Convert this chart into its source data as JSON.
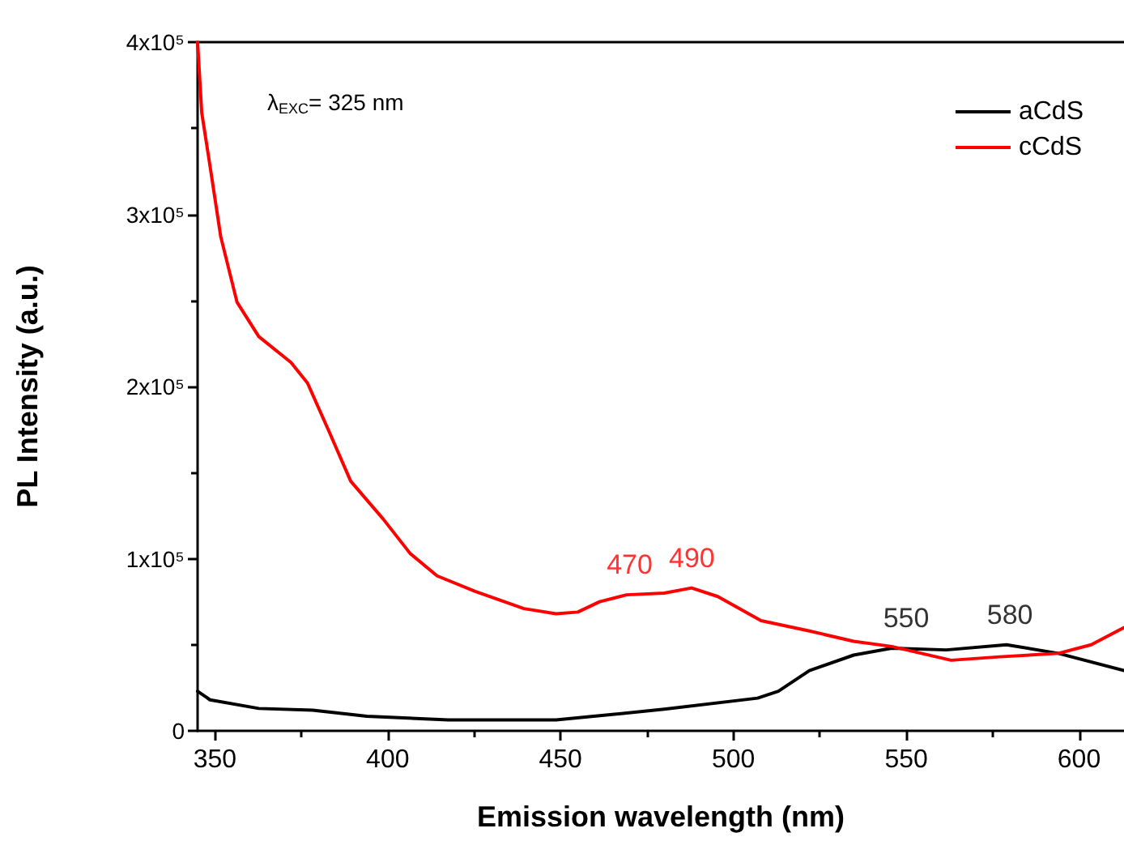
{
  "chart_data": {
    "type": "line",
    "xlabel": "Emission wavelength (nm)",
    "ylabel": "PL Intensity (a.u.)",
    "xlim": [
      345,
      613
    ],
    "xticks": [
      350,
      400,
      450,
      500,
      550,
      600
    ],
    "ylim": [
      0,
      400000
    ],
    "yticks": [
      {
        "value": 0,
        "label": "0"
      },
      {
        "value": 100000,
        "label": "1x10⁵"
      },
      {
        "value": 200000,
        "label": "2x10⁵"
      },
      {
        "value": 300000,
        "label": "3x10⁵"
      },
      {
        "value": 400000,
        "label": "4x10⁵"
      }
    ],
    "grid": false,
    "legend": "top right",
    "marker": "none",
    "line_style": "solid",
    "series": [
      {
        "name": "aCdS",
        "color": "#000000",
        "x": [
          345,
          348.6,
          362.7,
          378.3,
          394,
          417.5,
          448.7,
          464.4,
          480,
          507,
          513,
          522,
          534.8,
          545.8,
          561.6,
          579,
          594,
          613
        ],
        "values": [
          23000,
          18000,
          13000,
          12000,
          8500,
          6300,
          6300,
          9400,
          12600,
          19000,
          23000,
          35000,
          44000,
          48000,
          47000,
          50000,
          45000,
          35000
        ]
      },
      {
        "name": "cCdS",
        "color": "#ff0000",
        "x": [
          345,
          346.2,
          348.6,
          351.7,
          356.4,
          362.7,
          372,
          376.8,
          383,
          389.3,
          398.7,
          406.5,
          414.3,
          425.3,
          439.4,
          448.7,
          455,
          461.3,
          469.1,
          480,
          487.9,
          495.5,
          508,
          522,
          534.8,
          545.8,
          563,
          577,
          594,
          603.5,
          613
        ],
        "values": [
          400000,
          359000,
          328000,
          287000,
          249000,
          229000,
          214000,
          202000,
          174000,
          145000,
          123000,
          103000,
          90000,
          81000,
          71000,
          68000,
          69000,
          75000,
          79000,
          80000,
          83000,
          78000,
          64000,
          58000,
          52000,
          49000,
          41000,
          43000,
          45000,
          50000,
          60000
        ]
      }
    ],
    "annotations": [
      "λ$_{EXC}$= 325 nm",
      {
        "text": "470",
        "x": 470,
        "y": 79000
      },
      {
        "text": "490",
        "x": 488,
        "y": 83000
      },
      {
        "text": "550",
        "x": 550,
        "y": 48000
      },
      {
        "text": "580",
        "x": 580,
        "y": 50000
      }
    ]
  }
}
